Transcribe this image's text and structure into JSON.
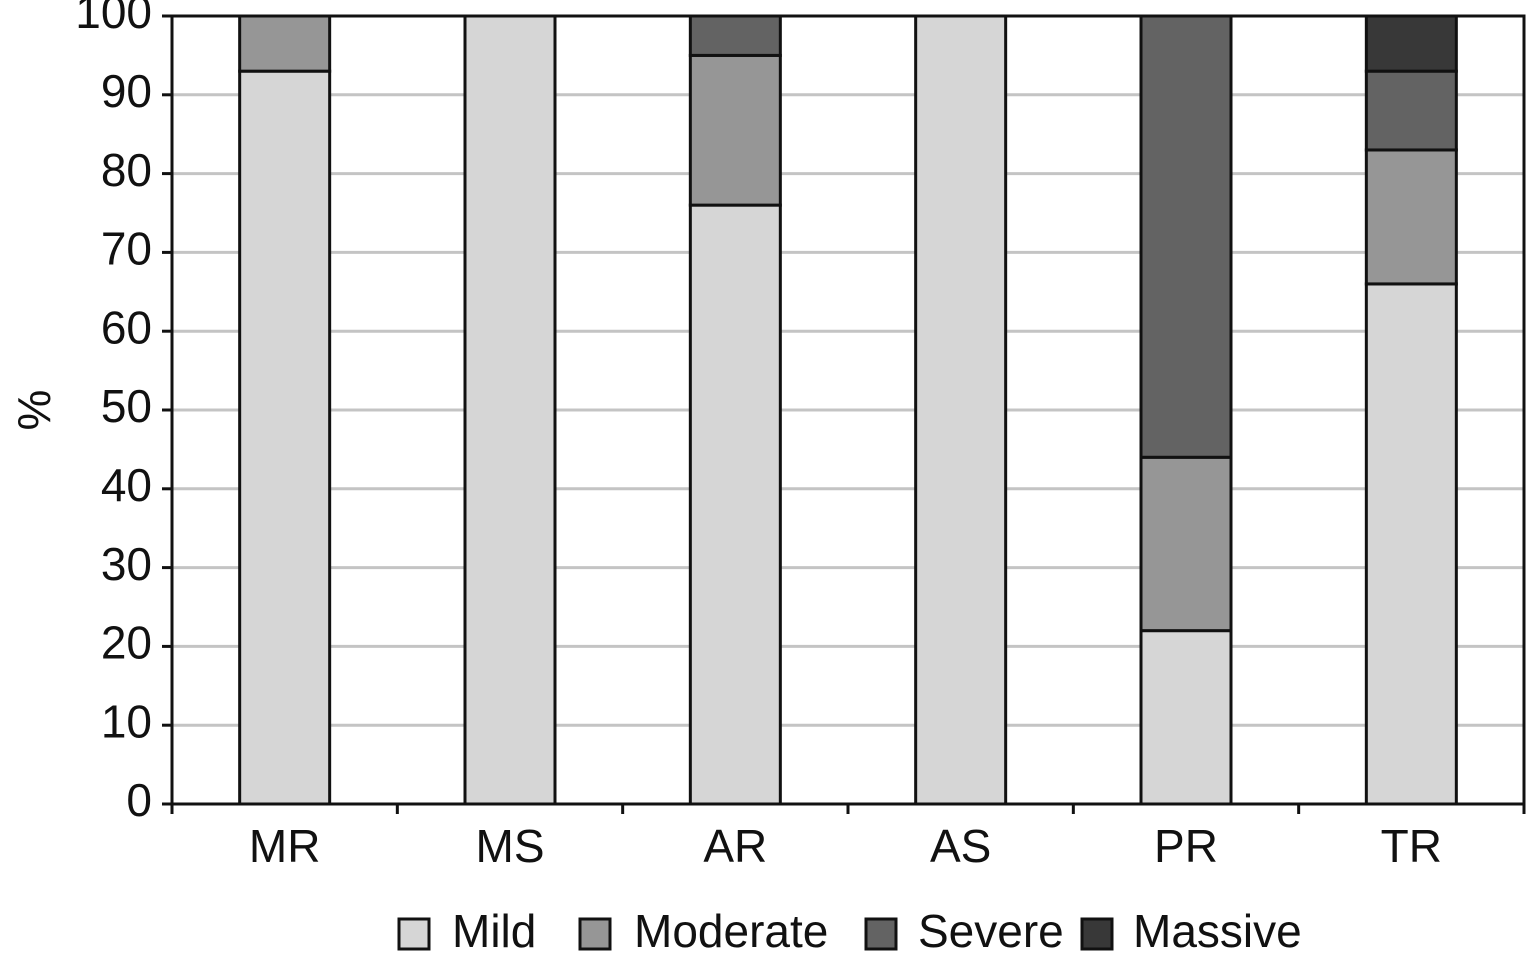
{
  "chart_data": {
    "type": "bar",
    "stacked": true,
    "title": "",
    "xlabel": "",
    "ylabel": "%",
    "ylim": [
      0,
      100
    ],
    "yticks": [
      0,
      10,
      20,
      30,
      40,
      50,
      60,
      70,
      80,
      90,
      100
    ],
    "grid": true,
    "legend_position": "bottom",
    "categories": [
      "MR",
      "MS",
      "AR",
      "AS",
      "PR",
      "TR"
    ],
    "series": [
      {
        "name": "Mild",
        "color": "#d6d6d6",
        "values": [
          93,
          100,
          76,
          100,
          22,
          66
        ]
      },
      {
        "name": "Moderate",
        "color": "#969696",
        "values": [
          7,
          0,
          19,
          0,
          22,
          17
        ]
      },
      {
        "name": "Severe",
        "color": "#636363",
        "values": [
          0,
          0,
          5,
          0,
          56,
          10
        ]
      },
      {
        "name": "Massive",
        "color": "#383838",
        "values": [
          0,
          0,
          0,
          0,
          0,
          7
        ]
      }
    ]
  }
}
